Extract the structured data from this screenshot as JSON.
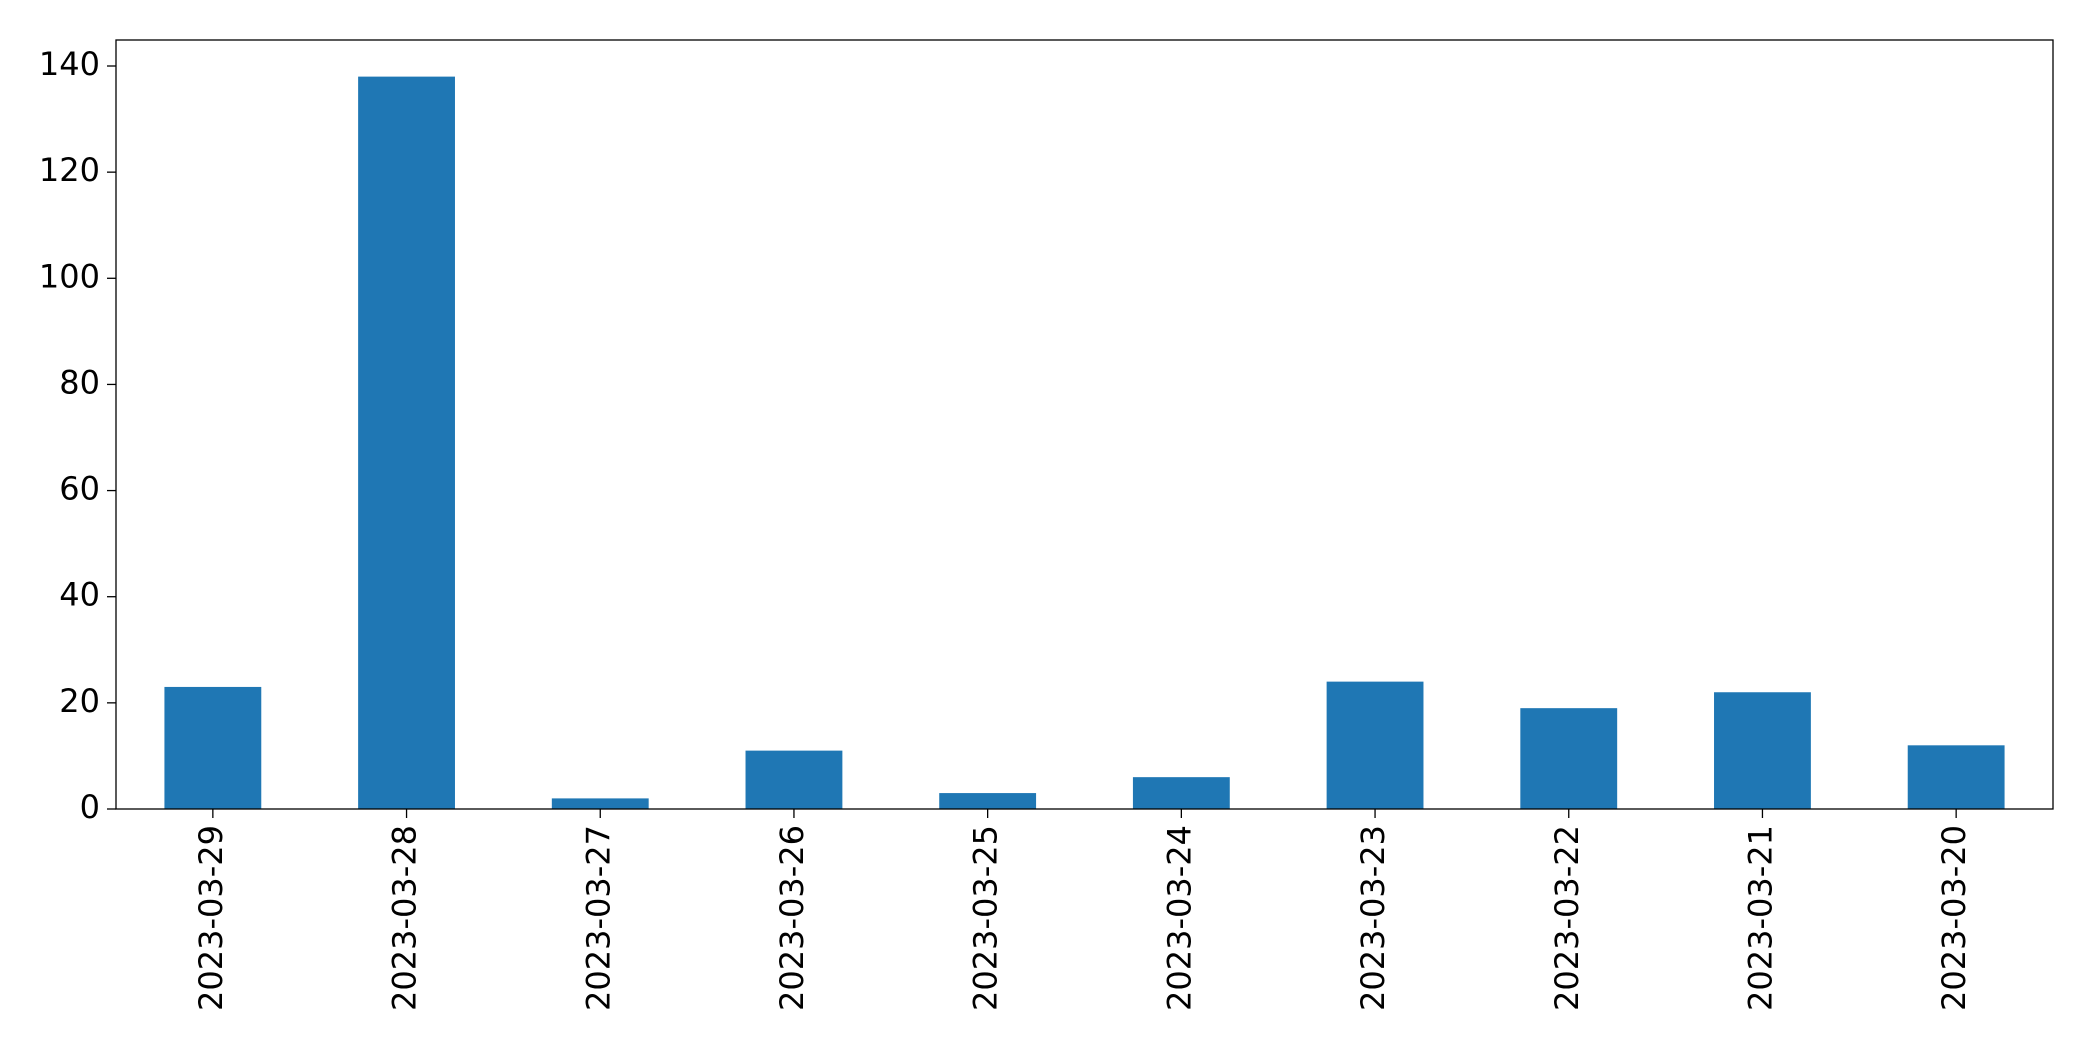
{
  "chart_data": {
    "type": "bar",
    "categories": [
      "2023-03-29",
      "2023-03-28",
      "2023-03-27",
      "2023-03-26",
      "2023-03-25",
      "2023-03-24",
      "2023-03-23",
      "2023-03-22",
      "2023-03-21",
      "2023-03-20"
    ],
    "values": [
      23,
      138,
      2,
      11,
      3,
      6,
      24,
      19,
      22,
      12
    ],
    "color": "#1f77b4",
    "ylim": [
      0,
      144.9
    ],
    "yticks": [
      0,
      20,
      40,
      60,
      80,
      100,
      120,
      140
    ],
    "grid": false
  }
}
